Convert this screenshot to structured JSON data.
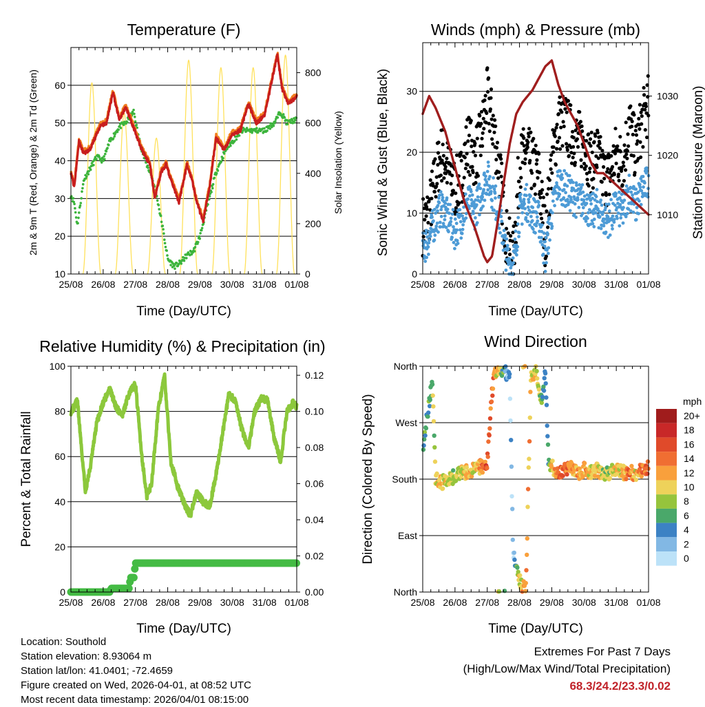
{
  "colors": {
    "temp_2m": "#c81e1e",
    "temp_9m": "#f07d1e",
    "dewpoint": "#3cb43c",
    "solar": "#ffe15a",
    "gust": "#000000",
    "wind": "#4d9bd6",
    "pressure": "#a01e1e",
    "humidity": "#8cc83c",
    "rain": "#44bb44",
    "extreme_text": "#c0232a"
  },
  "chart_data": [
    {
      "id": "temperature",
      "type": "line",
      "title": "Temperature (F)",
      "xlabel": "Time (Day/UTC)",
      "ylabel": "2m & 9m T (Red, Orange) & 2m Td (Green)",
      "y2label": "Solar Insolation (Yellow)",
      "xticks": [
        "25/08",
        "26/08",
        "27/08",
        "28/08",
        "29/08",
        "30/08",
        "31/08",
        "01/08"
      ],
      "xlim": [
        0,
        7
      ],
      "ylim": [
        10,
        70
      ],
      "yticks": [
        10,
        20,
        30,
        40,
        50,
        60
      ],
      "y2lim": [
        0,
        900
      ],
      "y2ticks": [
        0,
        200,
        400,
        600,
        800
      ],
      "series": [
        {
          "name": "2m T",
          "color": "#c81e1e",
          "x": [
            0,
            0.1,
            0.25,
            0.4,
            0.6,
            0.9,
            1.1,
            1.3,
            1.5,
            1.7,
            1.85,
            2.1,
            2.25,
            2.45,
            2.6,
            2.8,
            2.95,
            3.1,
            3.35,
            3.6,
            3.75,
            3.9,
            4.1,
            4.3,
            4.5,
            4.75,
            5.0,
            5.25,
            5.5,
            5.75,
            6.0,
            6.2,
            6.4,
            6.55,
            6.75,
            7.0
          ],
          "values": [
            37,
            33,
            45,
            42,
            43,
            49,
            50,
            58,
            51,
            54,
            51,
            45,
            42,
            39,
            30,
            37,
            39,
            35,
            29,
            39,
            35,
            29,
            24,
            33,
            46,
            43,
            47,
            48,
            55,
            50,
            52,
            60,
            68,
            59,
            55,
            57
          ]
        },
        {
          "name": "Td",
          "color": "#3cb43c",
          "x": [
            0,
            0.1,
            0.2,
            0.4,
            0.6,
            0.8,
            1.0,
            1.2,
            1.5,
            1.7,
            1.95,
            2.1,
            2.3,
            2.5,
            2.7,
            2.85,
            3.0,
            3.2,
            3.4,
            3.6,
            3.8,
            4.0,
            4.2,
            4.5,
            4.8,
            5.0,
            5.3,
            5.6,
            5.8,
            6.0,
            6.3,
            6.5,
            6.7,
            7.0
          ],
          "values": [
            31,
            29,
            23,
            35,
            38,
            41,
            40,
            45,
            49,
            50,
            53,
            46,
            40,
            36,
            29,
            22,
            14,
            12,
            13,
            15,
            16,
            20,
            27,
            37,
            43,
            45,
            48,
            48,
            48,
            48,
            50,
            53,
            50,
            51
          ]
        }
      ],
      "solar_peaks": [
        {
          "day": 0.65,
          "value": 760
        },
        {
          "day": 1.65,
          "value": 640
        },
        {
          "day": 2.65,
          "value": 540
        },
        {
          "day": 3.65,
          "value": 850
        },
        {
          "day": 4.65,
          "value": 820
        },
        {
          "day": 5.65,
          "value": 820
        },
        {
          "day": 6.65,
          "value": 870
        }
      ]
    },
    {
      "id": "winds",
      "type": "scatter",
      "title": "Winds (mph) & Pressure (mb)",
      "xlabel": "Time (Day/UTC)",
      "ylabel": "Sonic Wind & Gust (Blue, Black)",
      "y2label": "Station Pressure (Maroon)",
      "xticks": [
        "25/08",
        "26/08",
        "27/08",
        "28/08",
        "29/08",
        "30/08",
        "31/08",
        "01/08"
      ],
      "xlim": [
        0,
        7
      ],
      "ylim": [
        0,
        38
      ],
      "yticks": [
        0,
        10,
        20,
        30
      ],
      "y2lim": [
        1000,
        1039
      ],
      "y2ticks": [
        1010,
        1020,
        1030
      ],
      "gust_profile": {
        "x": [
          0,
          0.2,
          0.4,
          0.6,
          0.8,
          1.0,
          1.2,
          1.4,
          1.6,
          1.8,
          2.0,
          2.2,
          2.4,
          2.6,
          2.8,
          3.0,
          3.2,
          3.4,
          3.6,
          3.8,
          4.0,
          4.2,
          4.4,
          4.6,
          4.8,
          5.0,
          5.2,
          5.4,
          5.6,
          5.8,
          6.0,
          6.2,
          6.4,
          6.6,
          6.8,
          7.0
        ],
        "values": [
          8,
          10,
          16,
          20,
          17,
          14,
          16,
          22,
          19,
          22,
          29,
          24,
          16,
          6,
          2,
          18,
          20,
          18,
          16,
          6,
          18,
          25,
          25,
          23,
          22,
          22,
          18,
          20,
          16,
          16,
          20,
          18,
          25,
          20,
          25,
          28
        ]
      },
      "wind_profile": {
        "x": [
          0,
          0.2,
          0.4,
          0.6,
          0.8,
          1.0,
          1.2,
          1.4,
          1.6,
          1.8,
          2.0,
          2.2,
          2.4,
          2.6,
          2.8,
          3.0,
          3.2,
          3.4,
          3.6,
          3.8,
          4.0,
          4.2,
          4.4,
          4.6,
          4.8,
          5.0,
          5.2,
          5.4,
          5.6,
          5.8,
          6.0,
          6.2,
          6.4,
          6.6,
          6.8,
          7.0
        ],
        "values": [
          4,
          6,
          9,
          11,
          9,
          7,
          9,
          12,
          10,
          13,
          16,
          13,
          9,
          3,
          1,
          10,
          12,
          10,
          9,
          3,
          10,
          15,
          14,
          13,
          12,
          12,
          10,
          11,
          9,
          9,
          11,
          10,
          14,
          11,
          14,
          15
        ]
      },
      "series": [
        {
          "name": "Station Pressure",
          "color": "#a01e1e",
          "x": [
            0,
            0.2,
            0.4,
            0.7,
            1.0,
            1.3,
            1.6,
            1.9,
            2.0,
            2.15,
            2.3,
            2.5,
            2.7,
            2.9,
            3.1,
            3.4,
            3.6,
            3.8,
            4.0,
            4.2,
            4.4,
            4.6,
            4.8,
            5.0,
            5.2,
            5.4,
            5.6,
            5.8,
            6.0,
            6.2,
            6.4,
            6.6,
            6.8,
            7.0
          ],
          "values": [
            1027,
            1030,
            1028,
            1024,
            1018,
            1012,
            1008,
            1003,
            1002,
            1003,
            1008,
            1015,
            1022,
            1027,
            1029,
            1031,
            1033,
            1035,
            1036,
            1032,
            1029,
            1027,
            1025,
            1022,
            1019,
            1017,
            1017,
            1016,
            1015,
            1014,
            1013,
            1012,
            1011,
            1010
          ]
        }
      ]
    },
    {
      "id": "humidity",
      "type": "line",
      "title": "Relative Humidity (%) & Precipitation (in)",
      "xlabel": "Time (Day/UTC)",
      "ylabel": "Percent & Total Rainfall",
      "xticks": [
        "25/08",
        "26/08",
        "27/08",
        "28/08",
        "29/08",
        "30/08",
        "31/08",
        "01/08"
      ],
      "xlim": [
        0,
        7
      ],
      "ylim": [
        0,
        100
      ],
      "yticks": [
        0,
        20,
        40,
        60,
        80,
        100
      ],
      "y2lim": [
        0,
        0.125
      ],
      "y2ticks": [
        "0.00",
        "0.02",
        "0.04",
        "0.06",
        "0.08",
        "0.10",
        "0.12"
      ],
      "series": [
        {
          "name": "Relative Humidity",
          "color": "#8cc83c",
          "x": [
            0,
            0.1,
            0.2,
            0.35,
            0.45,
            0.6,
            0.8,
            1.0,
            1.2,
            1.4,
            1.6,
            1.8,
            2.0,
            2.2,
            2.35,
            2.5,
            2.7,
            2.9,
            3.1,
            3.3,
            3.55,
            3.7,
            3.9,
            4.1,
            4.3,
            4.5,
            4.7,
            4.9,
            5.1,
            5.3,
            5.5,
            5.7,
            5.9,
            6.1,
            6.3,
            6.5,
            6.7,
            6.9,
            7.0
          ],
          "values": [
            80,
            82,
            85,
            60,
            45,
            55,
            75,
            84,
            90,
            82,
            78,
            88,
            92,
            60,
            42,
            48,
            80,
            96,
            58,
            47,
            38,
            34,
            44,
            40,
            38,
            52,
            70,
            88,
            84,
            72,
            64,
            80,
            86,
            85,
            68,
            58,
            80,
            84,
            82
          ]
        },
        {
          "name": "Total Rainfall",
          "color": "#44bb44",
          "x": [
            0,
            1.2,
            1.25,
            1.8,
            1.85,
            1.95,
            2.0,
            7.0
          ],
          "values": [
            0,
            0,
            0.002,
            0.002,
            0.008,
            0.008,
            0.016,
            0.016
          ]
        }
      ]
    },
    {
      "id": "direction",
      "type": "scatter",
      "title": "Wind Direction",
      "xlabel": "Time (Day/UTC)",
      "ylabel": "Direction (Colored By Speed)",
      "xticks": [
        "25/08",
        "26/08",
        "27/08",
        "28/08",
        "29/08",
        "30/08",
        "31/08",
        "01/08"
      ],
      "xlim": [
        0,
        7
      ],
      "ylim": [
        0,
        360
      ],
      "ytick_labels": [
        "North",
        "East",
        "South",
        "West",
        "North"
      ],
      "yticks": [
        0,
        90,
        180,
        270,
        360
      ],
      "direction_profile": {
        "x": [
          0,
          0.1,
          0.2,
          0.3,
          0.4,
          0.6,
          0.8,
          1.0,
          1.2,
          1.4,
          1.6,
          1.8,
          2.0,
          2.1,
          2.2,
          2.4,
          2.5,
          2.7,
          2.8,
          2.9,
          3.0,
          3.1,
          3.2,
          3.35,
          3.5,
          3.6,
          3.7,
          3.8,
          3.9,
          4.0,
          4.2,
          4.4,
          4.6,
          4.8,
          5.0,
          5.2,
          5.4,
          5.6,
          5.8,
          6.0,
          6.2,
          6.4,
          6.6,
          6.8,
          7.0
        ],
        "values": [
          230,
          270,
          300,
          340,
          180,
          175,
          180,
          185,
          190,
          192,
          195,
          200,
          205,
          280,
          350,
          355,
          355,
          340,
          60,
          40,
          20,
          10,
          5,
          340,
          355,
          320,
          300,
          350,
          210,
          200,
          190,
          195,
          200,
          190,
          195,
          190,
          195,
          188,
          190,
          195,
          190,
          192,
          188,
          195,
          200
        ]
      },
      "legend": {
        "title": "mph",
        "labels": [
          "20+",
          "18",
          "16",
          "14",
          "12",
          "10",
          "8",
          "6",
          "4",
          "2",
          "0"
        ],
        "colors": [
          "#a01c1c",
          "#c82828",
          "#e04a2a",
          "#f06e32",
          "#f9a03c",
          "#eed25a",
          "#96c43c",
          "#4aa86a",
          "#3c82c4",
          "#82b8e4",
          "#bce2f8"
        ]
      }
    }
  ],
  "station_info": {
    "location": "Location: Southold",
    "elevation": "Station elevation: 8.93064 m",
    "latlon": "Station lat/lon: 41.0401; -72.4659",
    "created": "Figure created on Wed, 2026-04-01, at 08:52 UTC",
    "timestamp": "Most recent data timestamp: 2026/04/01 08:15:00"
  },
  "extremes": {
    "title": "Extremes For Past 7 Days",
    "subtitle": "(High/Low/Max Wind/Total Precipitation)",
    "values": "68.3/24.2/23.3/0.02"
  }
}
